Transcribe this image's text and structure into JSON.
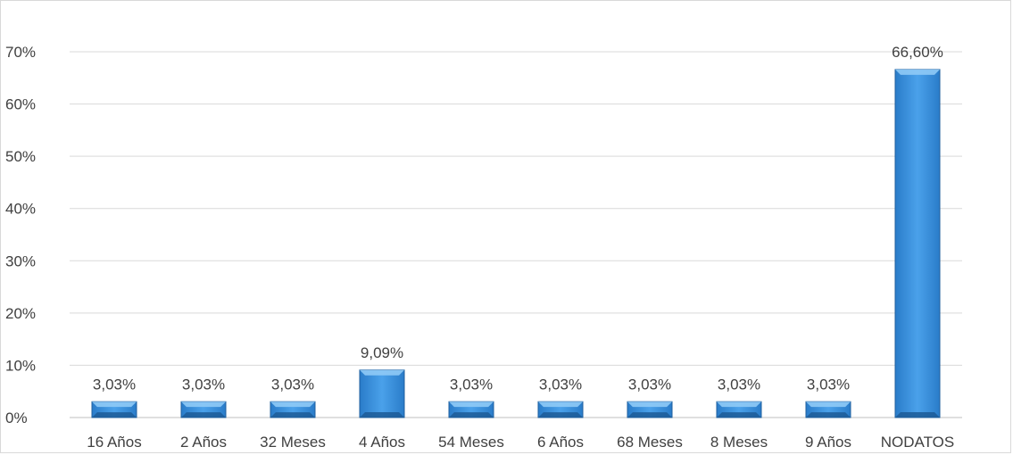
{
  "chart_data": {
    "type": "bar",
    "title": "",
    "xlabel": "",
    "ylabel": "",
    "categories": [
      "16 Años",
      "2 Años",
      "32 Meses",
      "4 Años",
      "54 Meses",
      "6 Años",
      "68 Meses",
      "8 Meses",
      "9 Años",
      "NODATOS"
    ],
    "values": [
      3.03,
      3.03,
      3.03,
      9.09,
      3.03,
      3.03,
      3.03,
      3.03,
      3.03,
      66.6
    ],
    "data_labels": [
      "3,03%",
      "3,03%",
      "3,03%",
      "9,09%",
      "3,03%",
      "3,03%",
      "3,03%",
      "3,03%",
      "3,03%",
      "66,60%"
    ],
    "y_ticks": [
      "0%",
      "10%",
      "20%",
      "30%",
      "40%",
      "50%",
      "60%",
      "70%"
    ],
    "ylim": [
      0,
      70
    ],
    "grid": true,
    "legend": "none",
    "colors": {
      "bar_light": "#5aaef0",
      "bar_mid": "#2f86d6",
      "bar_dark": "#1f5f9e",
      "grid": "#d9d9d9",
      "text": "#404040"
    }
  }
}
